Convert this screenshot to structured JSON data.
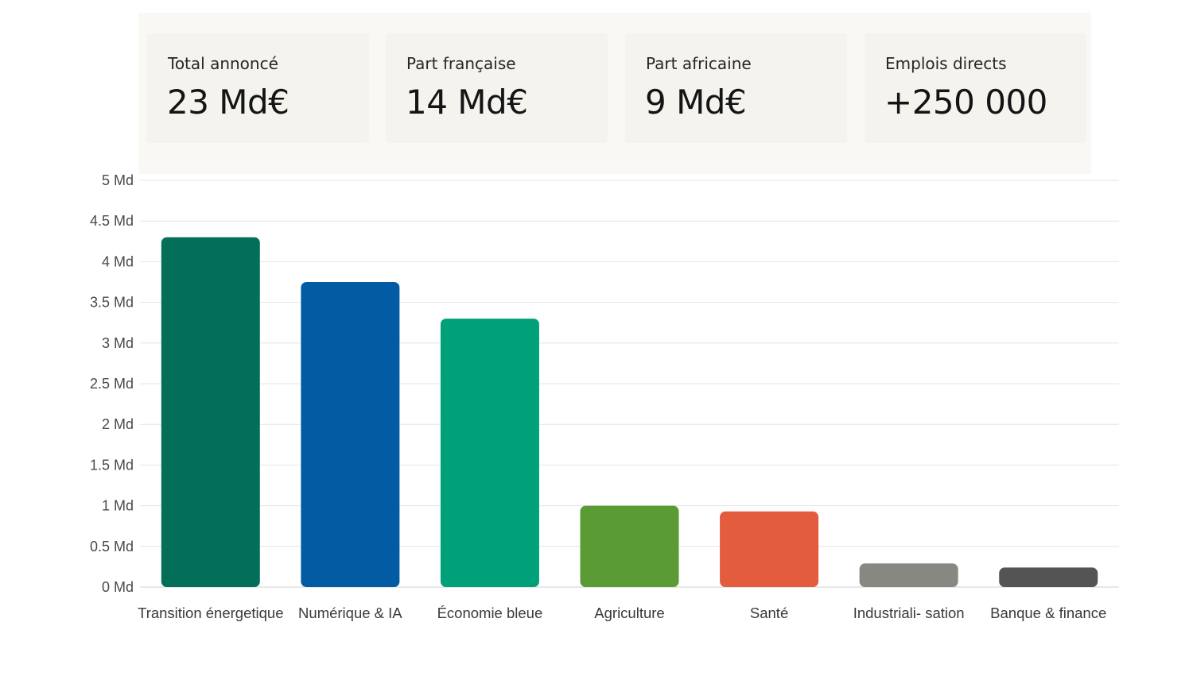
{
  "kpis": [
    {
      "label": "Total annoncé",
      "value": "23 Md€"
    },
    {
      "label": "Part française",
      "value": "14 Md€"
    },
    {
      "label": "Part africaine",
      "value": "9 Md€"
    },
    {
      "label": "Emplois directs",
      "value": "+250 000"
    }
  ],
  "chart_data": {
    "type": "bar",
    "title": "",
    "xlabel": "",
    "ylabel": "",
    "categories": [
      "Transition énergetique",
      "Numérique & IA",
      "Économie bleue",
      "Agriculture",
      "Santé",
      "Industriali- sation",
      "Banque & finance"
    ],
    "values": [
      4.3,
      3.75,
      3.3,
      1.0,
      0.93,
      0.29,
      0.24
    ],
    "colors": [
      "#036f58",
      "#035ca3",
      "#00a079",
      "#5a9b36",
      "#e45c3e",
      "#888883",
      "#545454"
    ],
    "ylim": [
      0,
      5
    ],
    "yticks": [
      0,
      0.5,
      1,
      1.5,
      2,
      2.5,
      3,
      3.5,
      4,
      4.5,
      5
    ],
    "ytick_labels": [
      "0 Md",
      "0.5 Md",
      "1 Md",
      "1.5 Md",
      "2 Md",
      "2.5 Md",
      "3 Md",
      "3.5 Md",
      "4 Md",
      "4.5 Md",
      "5 Md"
    ],
    "grid": true,
    "legend": "none"
  }
}
